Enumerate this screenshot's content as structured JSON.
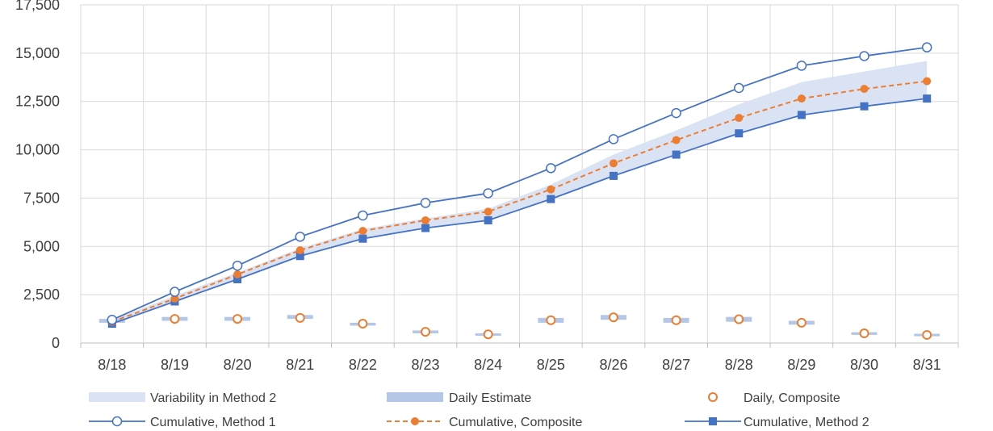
{
  "chart_data": {
    "type": "line",
    "title": "",
    "xlabel": "",
    "ylabel": "",
    "categories": [
      "8/18",
      "8/19",
      "8/20",
      "8/21",
      "8/22",
      "8/23",
      "8/24",
      "8/25",
      "8/26",
      "8/27",
      "8/28",
      "8/29",
      "8/30",
      "8/31"
    ],
    "ylim": [
      0,
      17500
    ],
    "yticks": [
      "0",
      "2,500",
      "5,000",
      "7,500",
      "10,000",
      "12,500",
      "15,000",
      "17,500"
    ],
    "grid": true,
    "legend_position": "bottom",
    "series": [
      {
        "name": "Variability in Method 2",
        "kind": "band",
        "color": "#dae3f3",
        "low": [
          1000,
          2150,
          3300,
          4500,
          5400,
          5950,
          6350,
          7450,
          8650,
          9750,
          10850,
          11800,
          12250,
          12650
        ],
        "high": [
          1200,
          2450,
          3650,
          4900,
          5900,
          6450,
          6950,
          8200,
          9750,
          11000,
          12350,
          13500,
          14050,
          14600
        ]
      },
      {
        "name": "Daily Estimate",
        "kind": "daily-bar",
        "color": "#b4c7e7",
        "low": [
          1050,
          1150,
          1150,
          1250,
          900,
          500,
          380,
          1050,
          1200,
          1050,
          1100,
          950,
          420,
          350
        ],
        "high": [
          1250,
          1350,
          1350,
          1450,
          1050,
          650,
          500,
          1300,
          1450,
          1300,
          1350,
          1150,
          560,
          480
        ]
      },
      {
        "name": "Daily, Composite",
        "kind": "marker-hollow",
        "color": "#ed7d31",
        "values": [
          1150,
          1250,
          1250,
          1300,
          1000,
          580,
          450,
          1180,
          1330,
          1180,
          1230,
          1050,
          500,
          420
        ]
      },
      {
        "name": "Cumulative, Method 1",
        "kind": "line-hollow-marker",
        "color": "#4472c4",
        "values": [
          1200,
          2650,
          4000,
          5500,
          6600,
          7250,
          7750,
          9050,
          10550,
          11900,
          13200,
          14350,
          14850,
          15300
        ]
      },
      {
        "name": "Cumulative, Composite",
        "kind": "dashed-line-marker",
        "color": "#ed7d31",
        "values": [
          1100,
          2300,
          3550,
          4800,
          5800,
          6350,
          6800,
          7950,
          9300,
          10500,
          11650,
          12650,
          13150,
          13550
        ]
      },
      {
        "name": "Cumulative, Method 2",
        "kind": "line-square-marker",
        "color": "#4472c4",
        "values": [
          1000,
          2150,
          3300,
          4500,
          5400,
          5950,
          6350,
          7450,
          8650,
          9750,
          10850,
          11800,
          12250,
          12650
        ]
      }
    ]
  }
}
